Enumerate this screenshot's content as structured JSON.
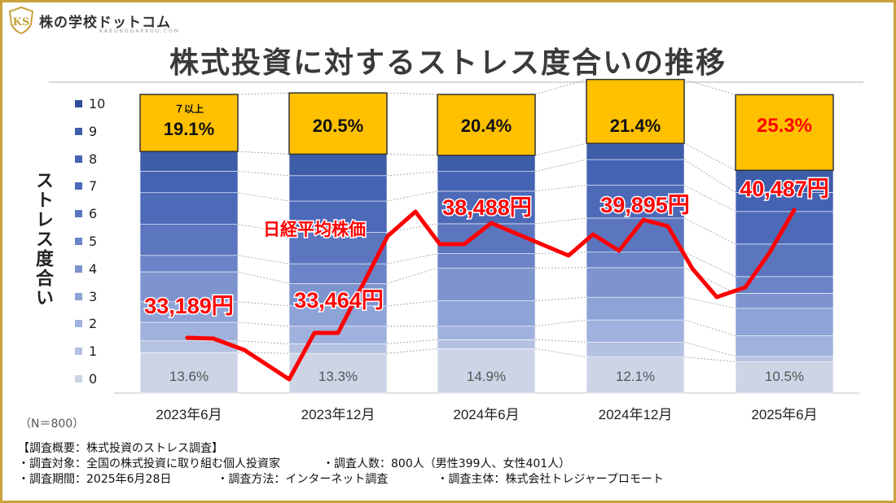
{
  "brand": {
    "name": "株の学校ドットコム",
    "sub": "KABUNOGAKKOU.COM",
    "mark": "KS"
  },
  "title": "株式投資に対するストレス度合いの推移",
  "ylabel": "ストレス度合い",
  "sample": "（N＝800）",
  "colors": {
    "frame": "#c8a23a",
    "top_segment": "#ffc000",
    "line": "#ff0000",
    "highlight_text": "#ff0000"
  },
  "chart_data": {
    "type": "bar",
    "subtype": "100% stacked bar with line overlay",
    "categories": [
      "2023年6月",
      "2023年12月",
      "2024年6月",
      "2024年12月",
      "2025年6月"
    ],
    "stress_levels": [
      "0",
      "1",
      "2",
      "3",
      "4",
      "5",
      "6",
      "7",
      "8",
      "9",
      "10"
    ],
    "legend_colors": [
      "#ccd4e6",
      "#b4c1e0",
      "#9fb1dc",
      "#8ea3d6",
      "#7e94cf",
      "#6b84c7",
      "#5b76bf",
      "#4d6ab8",
      "#4463b3",
      "#3d5da9",
      "#2f4f9c"
    ],
    "series": [
      {
        "name": "0",
        "values": [
          13.6,
          13.3,
          14.9,
          12.1,
          10.5
        ]
      },
      {
        "name": "1",
        "values": [
          3.9,
          3.2,
          3.0,
          5.0,
          1.8
        ]
      },
      {
        "name": "2",
        "values": [
          6.2,
          5.9,
          4.5,
          7.4,
          6.9
        ]
      },
      {
        "name": "3",
        "values": [
          6.9,
          6.8,
          8.5,
          7.6,
          9.2
        ]
      },
      {
        "name": "4",
        "values": [
          10.0,
          7.5,
          11.0,
          9.9,
          5.0
        ]
      },
      {
        "name": "5",
        "values": [
          5.5,
          6.6,
          4.8,
          5.2,
          5.6
        ]
      },
      {
        "name": "6",
        "values": [
          10.4,
          10.5,
          10.0,
          11.4,
          10.9
        ]
      },
      {
        "name": "7",
        "values": [
          10.6,
          10.5,
          10.9,
          11.0,
          10.9
        ]
      },
      {
        "name": "8",
        "values": [
          7.2,
          8.5,
          6.6,
          8.6,
          6.4
        ]
      },
      {
        "name": "9",
        "values": [
          6.6,
          7.2,
          5.4,
          5.4,
          7.4
        ]
      },
      {
        "name": "10 (7以上)",
        "values": [
          19.1,
          20.5,
          20.4,
          21.4,
          25.3
        ]
      }
    ],
    "top_labels": [
      "19.1%",
      "20.5%",
      "20.4%",
      "21.4%",
      "25.3%"
    ],
    "top_note": "７以上",
    "bottom_labels": [
      "13.6%",
      "13.3%",
      "14.9%",
      "12.1%",
      "10.5%"
    ],
    "nikkei": {
      "name": "日経平均株価",
      "labels": [
        "33,189円",
        "33,464円",
        "38,488円",
        "39,895円",
        "40,487円"
      ],
      "values": [
        33189,
        33464,
        38488,
        39895,
        40487
      ]
    }
  },
  "notes": {
    "heading": "【調査概要：株式投資のストレス調査】",
    "line1a": "・調査対象：全国の株式投資に取り組む個人投資家",
    "line1b": "・調査人数：800人（男性399人、女性401人）",
    "line2a": "・調査期間：2025年6月28日",
    "line2b": "・調査方法：インターネット調査",
    "line2c": "・調査主体：株式会社トレジャープロモート"
  }
}
